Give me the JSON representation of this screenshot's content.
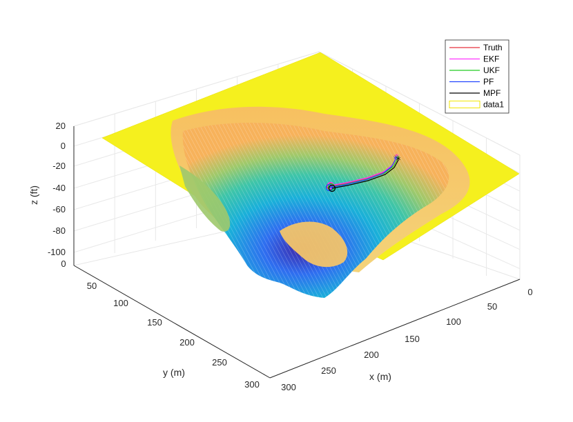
{
  "chart_data": {
    "type": "surface3d",
    "title": "",
    "xlabel": "x (m)",
    "ylabel": "y (m)",
    "zlabel": "z (ft)",
    "xlim": [
      0,
      300
    ],
    "ylim": [
      0,
      300
    ],
    "zlim": [
      -100,
      20
    ],
    "x_ticks": [
      "0",
      "50",
      "100",
      "150",
      "200",
      "250",
      "300"
    ],
    "y_ticks": [
      "0",
      "50",
      "100",
      "150",
      "200",
      "250",
      "300"
    ],
    "z_ticks": [
      "20",
      "0",
      "-20",
      "-40",
      "-60",
      "-80",
      "-100"
    ],
    "grid": true,
    "legend_position": "top-right",
    "legend": [
      {
        "name": "Truth",
        "color": "#e8323c"
      },
      {
        "name": "EKF",
        "color": "#ff33ff"
      },
      {
        "name": "UKF",
        "color": "#22cc22"
      },
      {
        "name": "PF",
        "color": "#2244ff"
      },
      {
        "name": "MPF",
        "color": "#000000"
      },
      {
        "name": "data1",
        "color": "#f2e600"
      }
    ],
    "colormap": [
      "#3e26a8",
      "#2f6ef0",
      "#1ab0d9",
      "#3fc5a8",
      "#9fc96b",
      "#f7b25b",
      "#f9e21e"
    ],
    "trajectories": {
      "start_marker": "o",
      "end_marker": "*",
      "approx_path_xy": [
        [
          70,
          150
        ],
        [
          80,
          130
        ],
        [
          100,
          112
        ],
        [
          130,
          98
        ],
        [
          160,
          92
        ]
      ]
    }
  }
}
